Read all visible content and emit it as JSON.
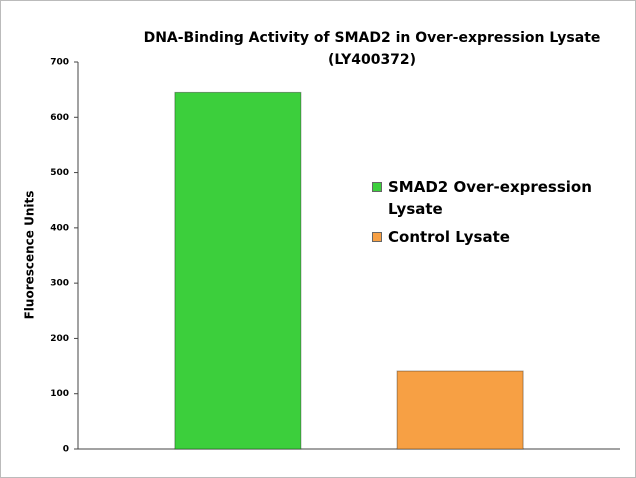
{
  "chart_data": {
    "type": "bar",
    "title": [
      "DNA-Binding Activity of SMAD2 in Over-expression Lysate",
      "(LY400372)"
    ],
    "ylabel": "Fluorescence Units",
    "categories": [
      null
    ],
    "series": [
      {
        "name": "SMAD2 Over-expression Lysate",
        "color": "#3ccf3c",
        "values": [
          645
        ]
      },
      {
        "name": "Control Lysate",
        "color": "#f7a044",
        "values": [
          141
        ]
      }
    ],
    "ylim": [
      0,
      700
    ],
    "yticks": [
      0,
      100,
      200,
      300,
      400,
      500,
      600,
      700
    ],
    "grid": false
  }
}
